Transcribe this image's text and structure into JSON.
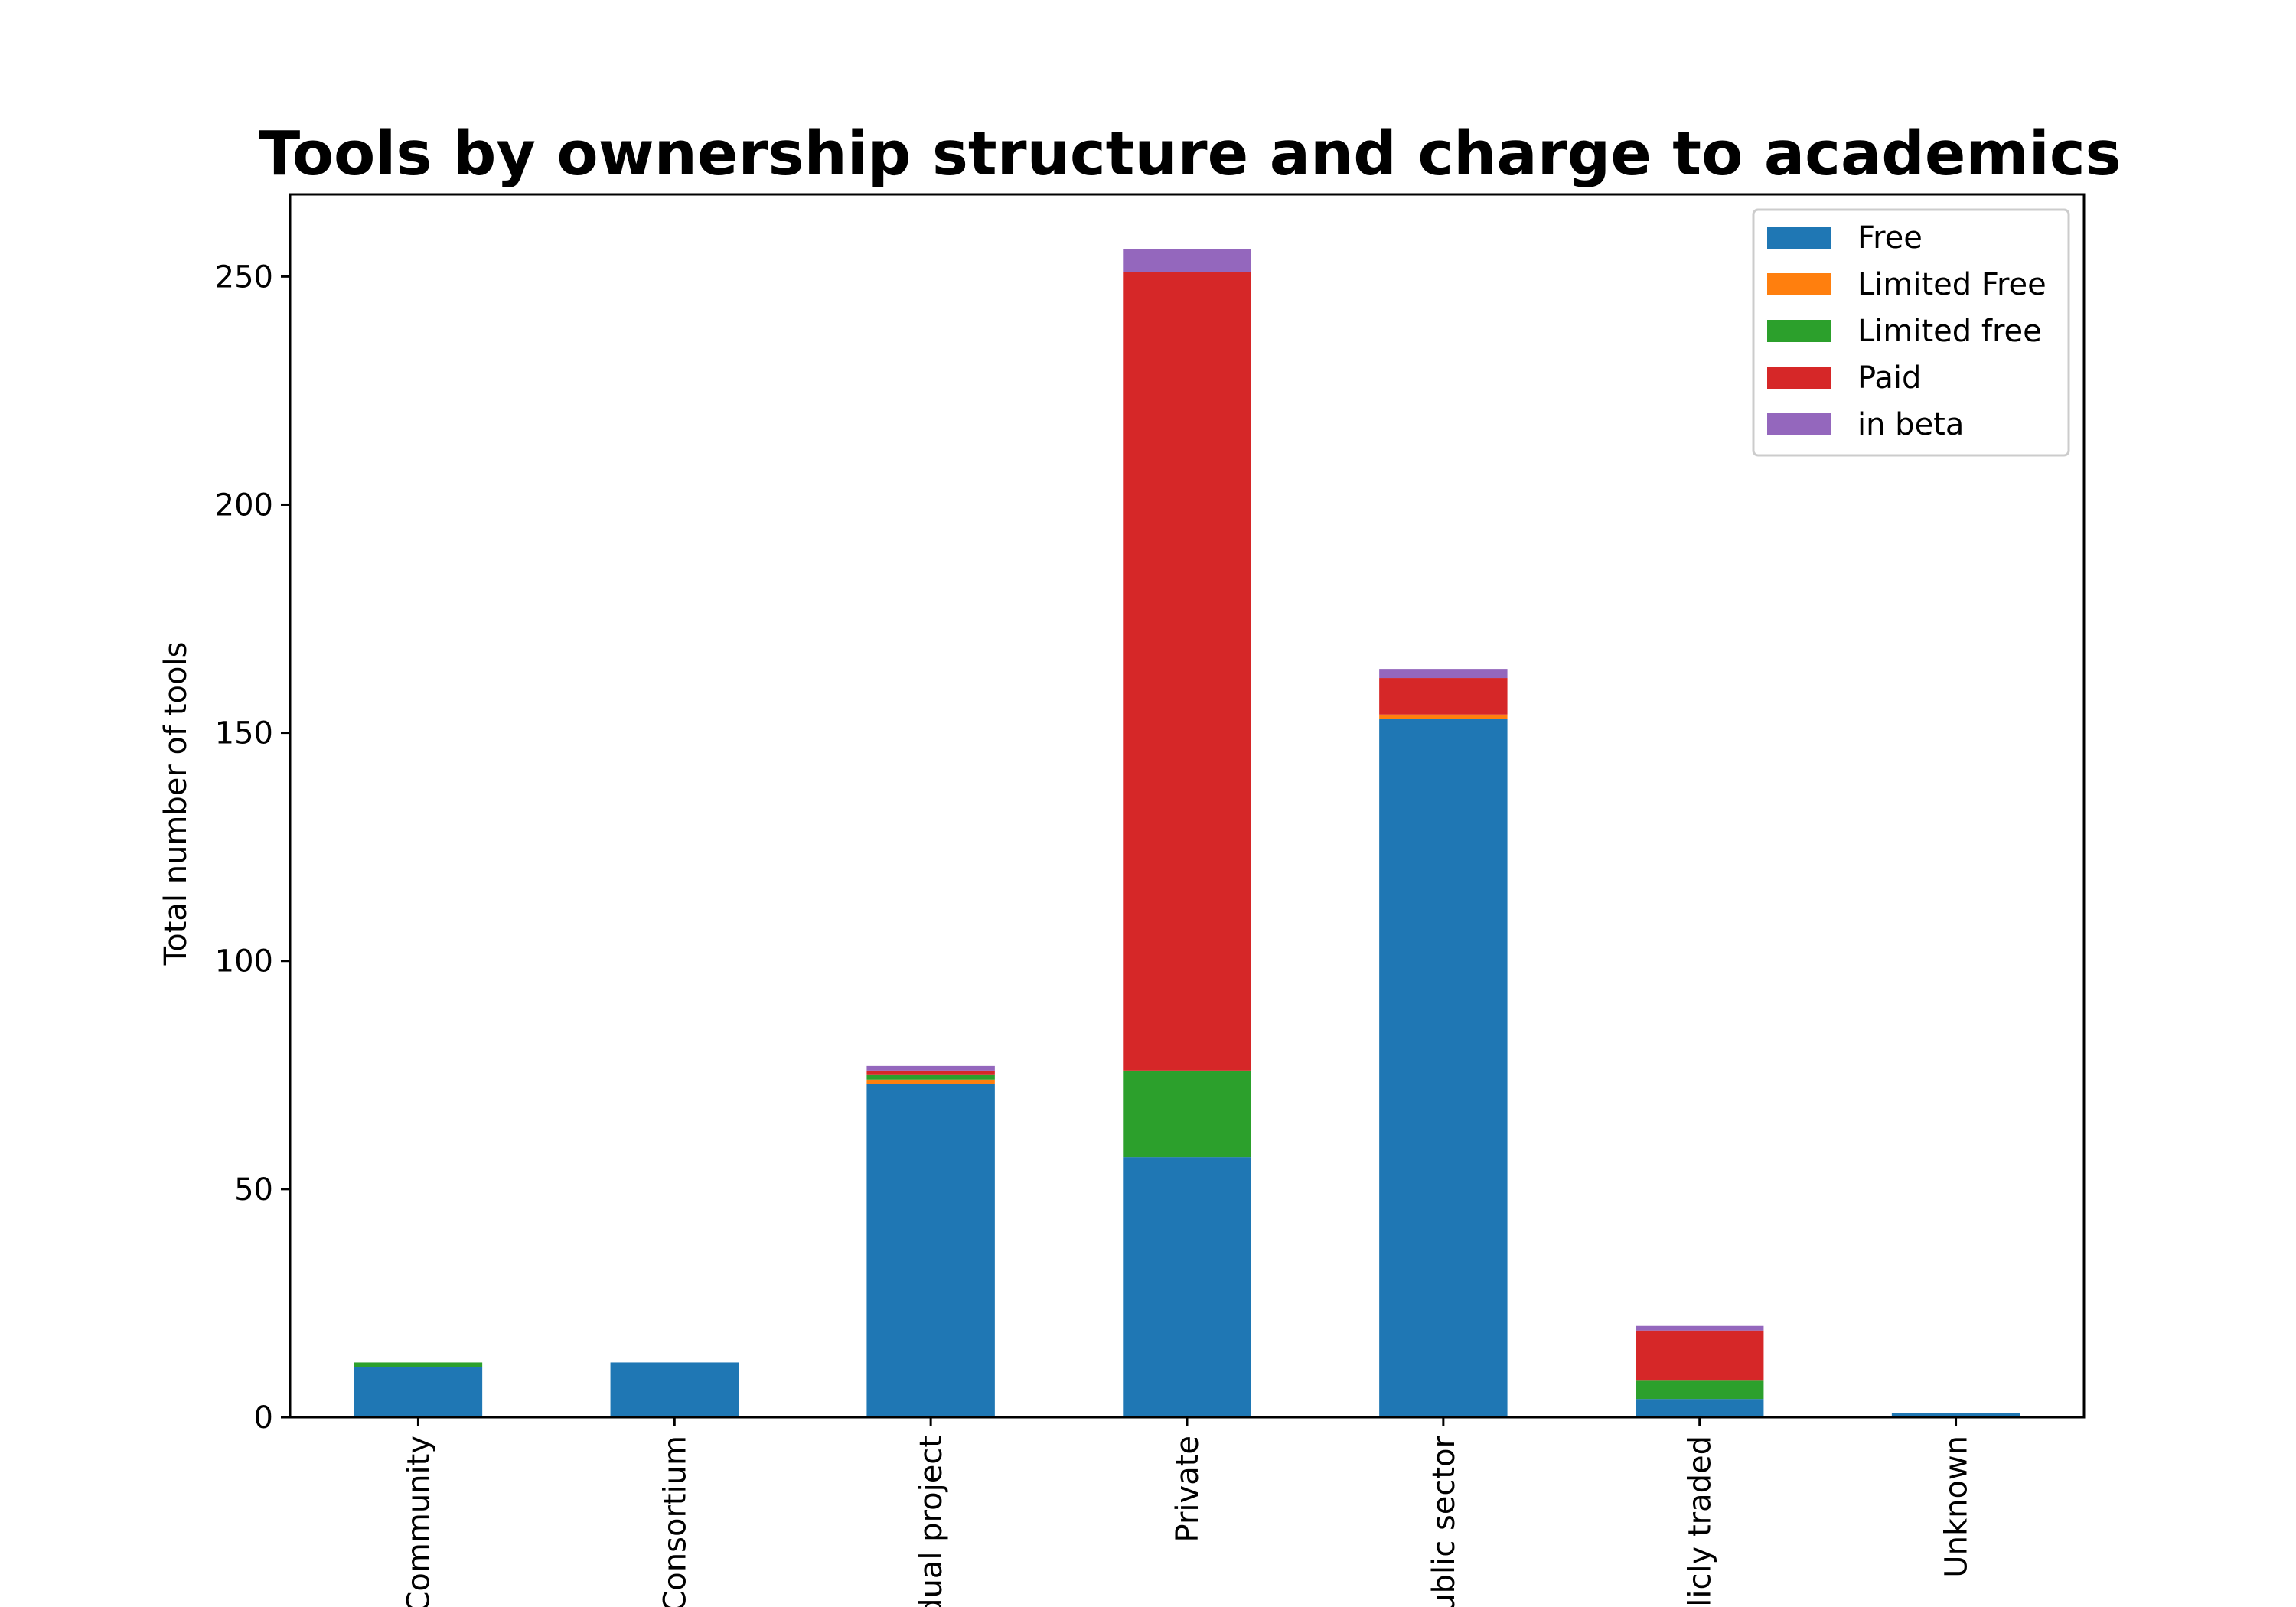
{
  "chart_data": {
    "type": "bar",
    "stacked": true,
    "title": "Tools by ownership structure and charge to academics",
    "xlabel": "",
    "ylabel": "Total number of tools",
    "ylim": [
      0,
      268
    ],
    "yticks": [
      0,
      50,
      100,
      150,
      200,
      250
    ],
    "grid": false,
    "legend_position": "top-right",
    "categories": [
      "Community",
      "Consortium",
      "Individual project",
      "Private",
      "Public sector",
      "Publicly traded",
      "Unknown"
    ],
    "category_labels_visible": [
      "Community",
      "Consortium",
      "dual project",
      "Private",
      "ublic sector",
      "licly traded",
      "Unknown"
    ],
    "series": [
      {
        "name": "Free",
        "color": "#1f77b4",
        "values": [
          11,
          12,
          73,
          57,
          153,
          4,
          1
        ]
      },
      {
        "name": "Limited Free",
        "color": "#ff7f0e",
        "values": [
          0,
          0,
          1,
          0,
          1,
          0,
          0
        ]
      },
      {
        "name": "Limited free",
        "color": "#2ca02c",
        "values": [
          1,
          0,
          1,
          19,
          0,
          4,
          0
        ]
      },
      {
        "name": "Paid",
        "color": "#d62728",
        "values": [
          0,
          0,
          1,
          175,
          8,
          11,
          0
        ]
      },
      {
        "name": "in beta",
        "color": "#9467bd",
        "values": [
          0,
          0,
          1,
          5,
          2,
          1,
          0
        ]
      }
    ]
  }
}
